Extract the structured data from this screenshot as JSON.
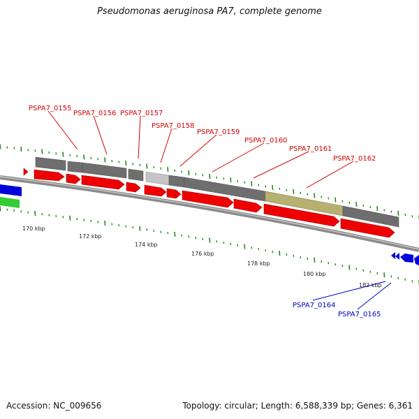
{
  "title": "Pseudomonas aeruginosa PA7, complete genome",
  "accession": "Accession: NC_009656",
  "summary": "Topology: circular; Length: 6,588,339 bp; Genes: 6,361",
  "colors": {
    "backbone": "#8a8a8a",
    "cds": "#ee0000",
    "gene": "#6e6e6e",
    "gene_light": "#c4c4c4",
    "gene_olive": "#b7b070",
    "other_blue": "#0000dd",
    "other_green": "#33cc33",
    "tick": "#1f8a1f",
    "label_top": "#d40000",
    "label_bottom": "#0000c8"
  },
  "scale_labels": [
    "170 kbp",
    "172 kbp",
    "174 kbp",
    "176 kbp",
    "178 kbp",
    "180 kbp",
    "182 kbp"
  ],
  "top_labels": [
    "PSPA7_0155",
    "PSPA7_0156",
    "PSPA7_0157",
    "PSPA7_0158",
    "PSPA7_0159",
    "PSPA7_0160",
    "PSPA7_0161",
    "PSPA7_0162"
  ],
  "bottom_labels": [
    "PSPA7_0164",
    "PSPA7_0165"
  ]
}
